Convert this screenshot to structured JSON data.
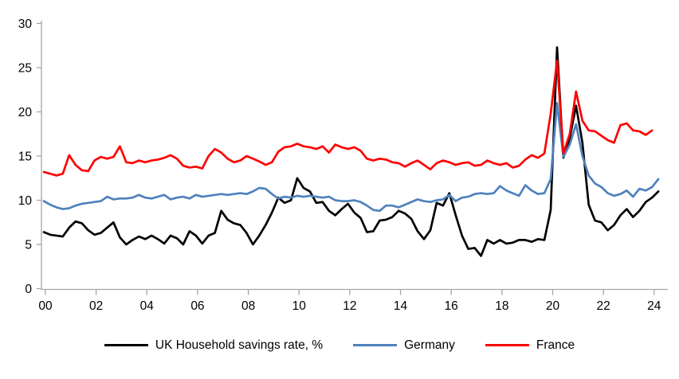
{
  "chart_data": {
    "type": "line",
    "title": "",
    "xlabel": "",
    "ylabel": "",
    "x_unit": "quarterly",
    "x_start": "2000Q1",
    "x_tick_labels": [
      "00",
      "02",
      "04",
      "06",
      "08",
      "10",
      "12",
      "14",
      "16",
      "18",
      "20",
      "22",
      "24"
    ],
    "y_ticks": [
      0,
      5,
      10,
      15,
      20,
      25,
      30
    ],
    "ylim": [
      0,
      30
    ],
    "grid": false,
    "legend_position": "bottom",
    "axis_color": "#a6a6a6",
    "series": [
      {
        "name": "UK Household savings rate, %",
        "color": "#000000",
        "last_point": "2024Q2",
        "values": [
          6.4,
          6.1,
          6.0,
          5.9,
          6.9,
          7.6,
          7.4,
          6.6,
          6.1,
          6.3,
          6.9,
          7.5,
          5.8,
          5.0,
          5.5,
          5.9,
          5.6,
          6.0,
          5.6,
          5.1,
          6.0,
          5.7,
          5.0,
          6.5,
          6.0,
          5.1,
          6.0,
          6.3,
          8.8,
          7.8,
          7.4,
          7.2,
          6.3,
          5.0,
          6.0,
          7.2,
          8.6,
          10.3,
          9.7,
          10.0,
          12.5,
          11.4,
          11.0,
          9.7,
          9.8,
          8.8,
          8.3,
          9.0,
          9.6,
          8.6,
          8.0,
          6.4,
          6.5,
          7.7,
          7.8,
          8.1,
          8.8,
          8.5,
          7.9,
          6.5,
          5.6,
          6.6,
          9.7,
          9.4,
          10.8,
          8.3,
          6.0,
          4.5,
          4.6,
          3.7,
          5.5,
          5.1,
          5.5,
          5.1,
          5.2,
          5.5,
          5.5,
          5.3,
          5.6,
          5.5,
          8.9,
          27.3,
          14.8,
          17.0,
          20.7,
          16.5,
          9.5,
          7.7,
          7.5,
          6.6,
          7.2,
          8.3,
          9.0,
          8.1,
          8.8,
          9.8,
          10.3,
          11.0
        ]
      },
      {
        "name": "Germany",
        "color": "#4f81bd",
        "last_point": "2024Q2",
        "values": [
          9.9,
          9.5,
          9.2,
          9.0,
          9.1,
          9.4,
          9.6,
          9.7,
          9.8,
          9.9,
          10.4,
          10.1,
          10.2,
          10.2,
          10.3,
          10.6,
          10.3,
          10.2,
          10.4,
          10.6,
          10.1,
          10.3,
          10.4,
          10.2,
          10.6,
          10.4,
          10.5,
          10.6,
          10.7,
          10.6,
          10.7,
          10.8,
          10.7,
          11.0,
          11.4,
          11.3,
          10.7,
          10.2,
          10.4,
          10.3,
          10.5,
          10.4,
          10.5,
          10.4,
          10.3,
          10.4,
          10.0,
          9.9,
          9.9,
          10.0,
          9.8,
          9.4,
          8.9,
          8.8,
          9.4,
          9.4,
          9.2,
          9.5,
          9.8,
          10.1,
          9.9,
          9.8,
          10.0,
          10.1,
          10.6,
          9.9,
          10.3,
          10.4,
          10.7,
          10.8,
          10.7,
          10.8,
          11.6,
          11.1,
          10.8,
          10.5,
          11.7,
          11.1,
          10.7,
          10.8,
          12.4,
          21.0,
          14.9,
          16.3,
          18.6,
          15.0,
          12.8,
          11.9,
          11.5,
          10.8,
          10.5,
          10.7,
          11.1,
          10.4,
          11.3,
          11.1,
          11.5,
          12.4
        ]
      },
      {
        "name": "France",
        "color": "#fe0000",
        "last_point": "2024Q1",
        "values": [
          13.2,
          13.0,
          12.8,
          13.0,
          15.1,
          14.0,
          13.4,
          13.3,
          14.5,
          14.9,
          14.7,
          14.9,
          16.1,
          14.3,
          14.2,
          14.5,
          14.3,
          14.5,
          14.6,
          14.8,
          15.1,
          14.7,
          13.9,
          13.7,
          13.8,
          13.6,
          15.0,
          15.8,
          15.4,
          14.7,
          14.3,
          14.5,
          15.0,
          14.7,
          14.4,
          14.0,
          14.3,
          15.5,
          16.0,
          16.1,
          16.4,
          16.1,
          16.0,
          15.8,
          16.1,
          15.4,
          16.3,
          16.0,
          15.8,
          16.0,
          15.6,
          14.7,
          14.5,
          14.7,
          14.6,
          14.3,
          14.2,
          13.8,
          14.2,
          14.5,
          14.0,
          13.5,
          14.2,
          14.5,
          14.3,
          14.0,
          14.2,
          14.3,
          13.9,
          14.0,
          14.5,
          14.2,
          14.0,
          14.2,
          13.7,
          13.9,
          14.6,
          15.1,
          14.8,
          15.3,
          19.8,
          25.8,
          15.3,
          17.5,
          22.3,
          19.0,
          17.9,
          17.8,
          17.3,
          16.8,
          16.5,
          18.5,
          18.7,
          17.9,
          17.8,
          17.4,
          17.9
        ]
      }
    ]
  }
}
